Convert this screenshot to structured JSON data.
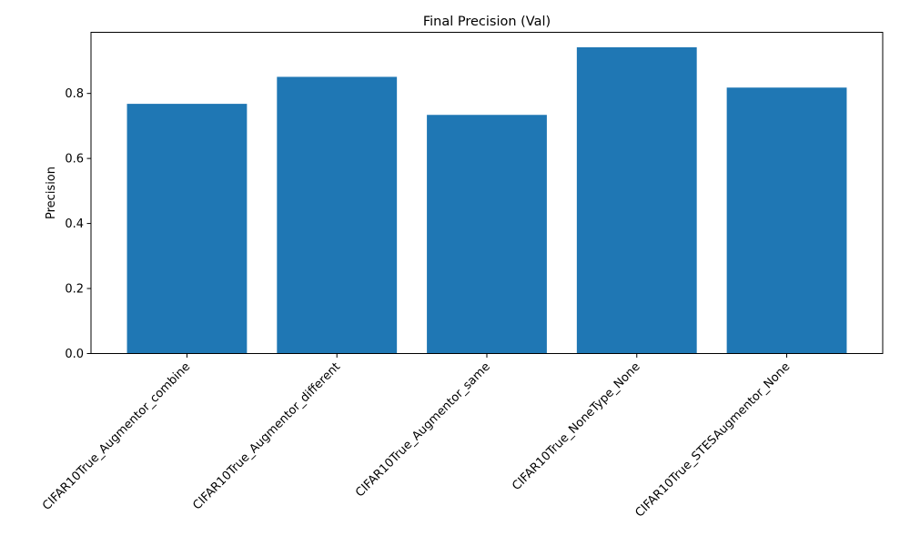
{
  "chart_data": {
    "type": "bar",
    "title": "Final Precision (Val)",
    "xlabel": "",
    "ylabel": "Precision",
    "categories": [
      "CIFAR10True_Augmentor_combine",
      "CIFAR10True_Augmentor_different",
      "CIFAR10True_Augmentor_same",
      "CIFAR10True_NoneType_None",
      "CIFAR10True_STESAugmentor_None"
    ],
    "values": [
      0.768,
      0.851,
      0.734,
      0.942,
      0.818
    ],
    "ylim": [
      0,
      0.988
    ],
    "yticks": [
      0.0,
      0.2,
      0.4,
      0.6,
      0.8
    ],
    "ytick_labels": [
      "0.0",
      "0.2",
      "0.4",
      "0.6",
      "0.8"
    ],
    "bar_color": "#1f77b4",
    "grid": false
  }
}
